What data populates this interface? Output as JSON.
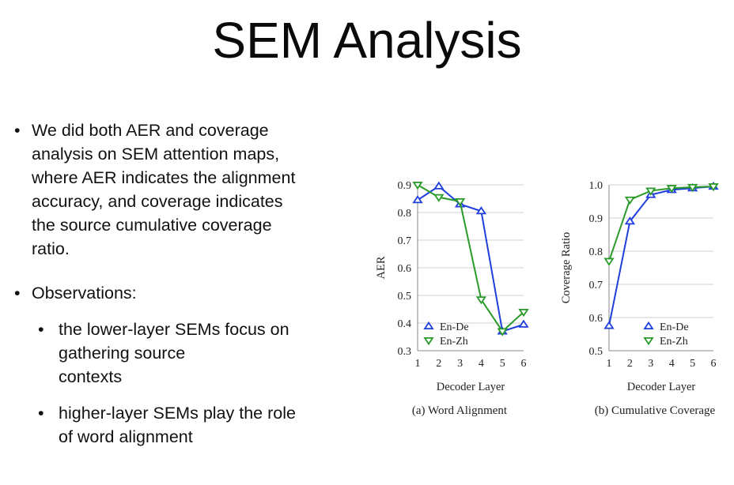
{
  "slide": {
    "title": "SEM Analysis",
    "bullet1_lines": [
      "We did both AER and coverage",
      "analysis on SEM attention maps,",
      "where AER indicates the alignment",
      "accuracy, and coverage indicates",
      "the source cumulative coverage",
      "ratio."
    ],
    "bullet2": "Observations:",
    "sub1_lines": [
      "the lower-layer SEMs focus on",
      "gathering source",
      "contexts"
    ],
    "sub2_lines": [
      "higher-layer SEMs play the role",
      "of word alignment"
    ]
  },
  "colors": {
    "en_de": "#1f3fdc",
    "en_zh": "#2a9a2a",
    "axis": "#888888",
    "grid": "#d0d0d0"
  },
  "chart_data": [
    {
      "type": "line",
      "caption": "(a) Word Alignment",
      "xlabel": "Decoder Layer",
      "ylabel": "AER",
      "x": [
        1,
        2,
        3,
        4,
        5,
        6
      ],
      "xticks": [
        "1",
        "2",
        "3",
        "4",
        "5",
        "6"
      ],
      "yticks": [
        "0.3",
        "0.4",
        "0.5",
        "0.6",
        "0.7",
        "0.8",
        "0.9"
      ],
      "ylim": [
        0.3,
        0.9
      ],
      "grid": true,
      "legend": "bottom-left",
      "series": [
        {
          "name": "En-De",
          "marker": "triangle-up",
          "values": [
            0.845,
            0.895,
            0.83,
            0.805,
            0.37,
            0.395
          ]
        },
        {
          "name": "En-Zh",
          "marker": "triangle-down",
          "values": [
            0.9,
            0.855,
            0.84,
            0.485,
            0.37,
            0.44
          ]
        }
      ]
    },
    {
      "type": "line",
      "caption": "(b) Cumulative Coverage",
      "xlabel": "Decoder Layer",
      "ylabel": "Coverage Ratio",
      "x": [
        1,
        2,
        3,
        4,
        5,
        6
      ],
      "xticks": [
        "1",
        "2",
        "3",
        "4",
        "5",
        "6"
      ],
      "yticks": [
        "0.5",
        "0.6",
        "0.7",
        "0.8",
        "0.9",
        "1.0"
      ],
      "ylim": [
        0.5,
        1.0
      ],
      "grid": true,
      "legend": "bottom-right",
      "series": [
        {
          "name": "En-De",
          "marker": "triangle-up",
          "values": [
            0.575,
            0.89,
            0.97,
            0.985,
            0.99,
            0.995
          ]
        },
        {
          "name": "En-Zh",
          "marker": "triangle-down",
          "values": [
            0.77,
            0.955,
            0.982,
            0.99,
            0.993,
            0.995
          ]
        }
      ]
    }
  ]
}
